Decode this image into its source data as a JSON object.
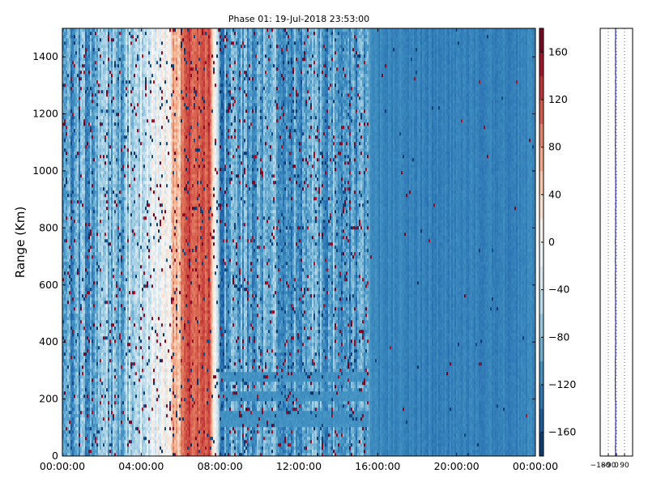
{
  "chart_data": [
    {
      "type": "heatmap",
      "title": "Phase 01: 19-Jul-2018 23:53:00",
      "ylabel": "Range (Km)",
      "xlabel": "",
      "x_tick_labels": [
        "00:00:00",
        "04:00:00",
        "08:00:00",
        "12:00:00",
        "16:00:00",
        "20:00:00",
        "00:00:00"
      ],
      "x_range_hours": [
        0,
        24
      ],
      "y_ticks": [
        0,
        200,
        400,
        600,
        800,
        1000,
        1200,
        1400
      ],
      "ylim": [
        0,
        1500
      ],
      "colorbar": {
        "min": -180,
        "max": 180,
        "ticks": [
          -160,
          -120,
          -80,
          -40,
          0,
          40,
          80,
          120,
          160
        ],
        "colors": [
          "#053061",
          "#2166ac",
          "#4393c3",
          "#92c5de",
          "#d1e5f0",
          "#f7f7f7",
          "#fddbc7",
          "#f4a582",
          "#d6604d",
          "#b2182b",
          "#67001f"
        ]
      },
      "mean_phase_by_hour": [
        {
          "hour": 0,
          "phase": -120
        },
        {
          "hour": 1,
          "phase": -100
        },
        {
          "hour": 2,
          "phase": -60
        },
        {
          "hour": 3,
          "phase": -80
        },
        {
          "hour": 4,
          "phase": -30
        },
        {
          "hour": 5,
          "phase": -20
        },
        {
          "hour": 6.3,
          "phase": 120
        },
        {
          "hour": 7.5,
          "phase": 110
        },
        {
          "hour": 8,
          "phase": -110
        },
        {
          "hour": 10,
          "phase": -90
        },
        {
          "hour": 12,
          "phase": -100
        },
        {
          "hour": 14,
          "phase": -95
        },
        {
          "hour": 15.5,
          "phase": -100
        },
        {
          "hour": 16,
          "phase": -120
        },
        {
          "hour": 20,
          "phase": -125
        },
        {
          "hour": 24,
          "phase": -120
        }
      ],
      "bands": [
        {
          "start_hour": 8.0,
          "end_hour": 15.5,
          "range_km": [
            100,
            160
          ],
          "phase": -110
        },
        {
          "start_hour": 8.0,
          "end_hour": 15.5,
          "range_km": [
            190,
            230
          ],
          "phase": -110
        },
        {
          "start_hour": 8.0,
          "end_hour": 15.5,
          "range_km": [
            260,
            290
          ],
          "phase": -110
        }
      ]
    },
    {
      "type": "line",
      "x_tick_labels": [
        "−180",
        "−90",
        "0",
        "90"
      ],
      "xlim": [
        -180,
        180
      ],
      "ylim": [
        0,
        1500
      ],
      "grid": true,
      "series": [
        {
          "x": [
            -10,
            -8,
            -12,
            -10,
            -9,
            -11,
            -10,
            -8,
            -11,
            -10,
            -9,
            -10
          ],
          "y": [
            0,
            120,
            250,
            380,
            500,
            640,
            780,
            920,
            1060,
            1200,
            1340,
            1500
          ]
        }
      ]
    }
  ]
}
